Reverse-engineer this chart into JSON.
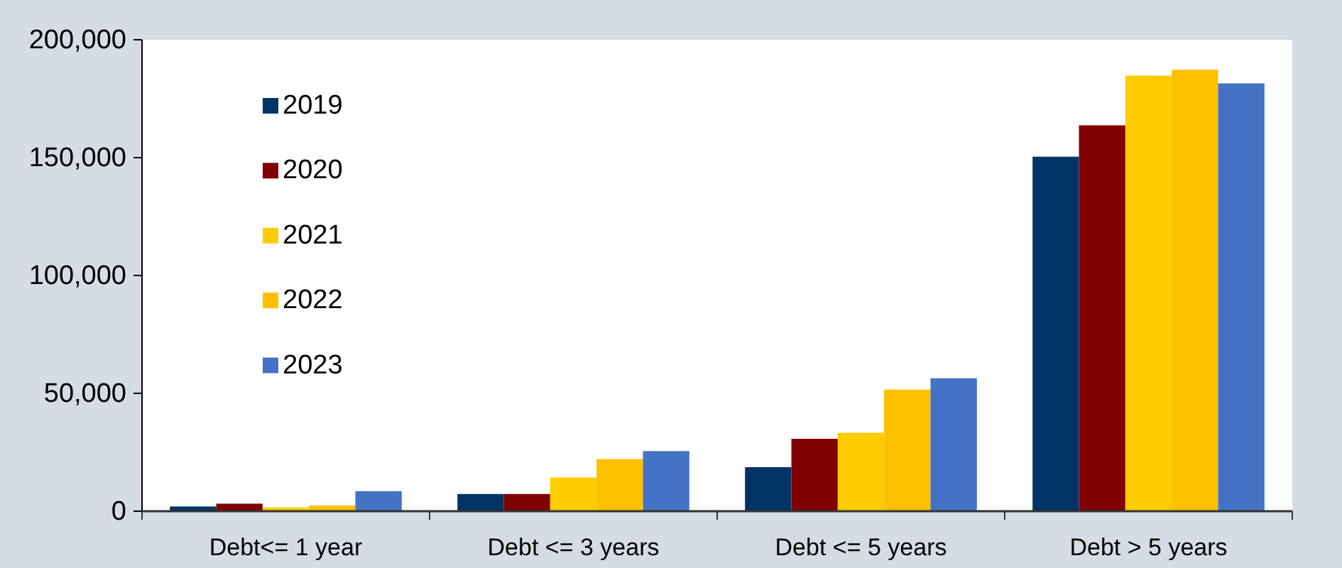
{
  "chart_data": {
    "type": "bar",
    "categories": [
      "Debt<= 1 year",
      "Debt <= 3 years",
      "Debt <= 5 years",
      "Debt > 5 years"
    ],
    "series": [
      {
        "name": "2019",
        "color": "#003366",
        "values": [
          2000,
          7300,
          18700,
          150400
        ]
      },
      {
        "name": "2020",
        "color": "#800000",
        "values": [
          3200,
          7300,
          30700,
          163700
        ]
      },
      {
        "name": "2021",
        "color": "#ffcc00",
        "values": [
          1600,
          14300,
          33300,
          184800
        ]
      },
      {
        "name": "2022",
        "color": "#ffc000",
        "values": [
          2400,
          22100,
          51600,
          187300
        ]
      },
      {
        "name": "2023",
        "color": "#4472c4",
        "values": [
          8500,
          25500,
          56400,
          181500
        ]
      }
    ],
    "ylim": [
      0,
      200000
    ],
    "yticks": [
      {
        "value": 0,
        "label": "0"
      },
      {
        "value": 50000,
        "label": "50,000"
      },
      {
        "value": 100000,
        "label": "100,000"
      },
      {
        "value": 150000,
        "label": "150,000"
      },
      {
        "value": 200000,
        "label": "200,000"
      }
    ],
    "grid": false,
    "legend": "top left"
  }
}
